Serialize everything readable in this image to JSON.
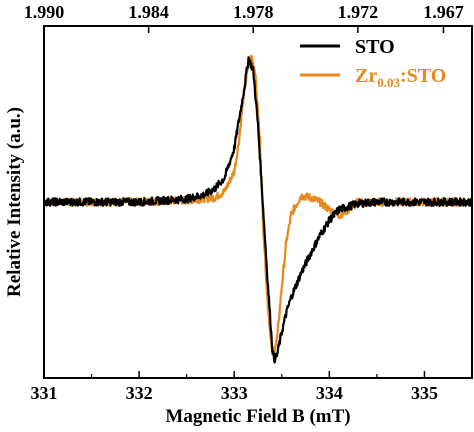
{
  "chart_data": {
    "type": "line",
    "title": "",
    "xlabel": "Magnetic Field B (mT)",
    "ylabel": "Relative Intensity (a.u.)",
    "xlim": [
      331,
      335.5
    ],
    "ylim": [
      -1.15,
      1.15
    ],
    "x_ticks": [
      "331",
      "332",
      "333",
      "334",
      "335"
    ],
    "top_axis_ticks": [
      "1.990",
      "1.984",
      "1.978",
      "1.972",
      "1.967"
    ],
    "top_axis_tick_positions_mT": [
      331.0,
      332.1,
      333.2,
      334.3,
      335.2
    ],
    "y_ticks_shown": false,
    "legend_position": "top-right",
    "series": [
      {
        "name": "STO",
        "legend_label": "STO",
        "color": "#000000",
        "x": [
          331.0,
          331.5,
          332.0,
          332.5,
          332.7,
          332.8,
          332.9,
          333.0,
          333.1,
          333.15,
          333.2,
          333.25,
          333.3,
          333.35,
          333.4,
          333.42,
          333.45,
          333.5,
          333.55,
          333.6,
          333.7,
          333.8,
          333.9,
          334.0,
          334.1,
          334.3,
          334.5,
          335.0,
          335.5
        ],
        "y": [
          0.0,
          0.0,
          0.0,
          0.02,
          0.05,
          0.09,
          0.16,
          0.35,
          0.72,
          0.94,
          0.86,
          0.5,
          0.0,
          -0.5,
          -0.95,
          -1.03,
          -1.0,
          -0.85,
          -0.72,
          -0.62,
          -0.47,
          -0.34,
          -0.22,
          -0.12,
          -0.05,
          -0.01,
          0.0,
          0.0,
          0.0
        ]
      },
      {
        "name": "Zr0.03:STO",
        "legend_label_main": "Zr",
        "legend_label_sub": "0.03",
        "legend_label_tail": ":STO",
        "color": "#E8891D",
        "x": [
          331.0,
          331.5,
          332.0,
          332.5,
          332.8,
          332.9,
          333.0,
          333.05,
          333.1,
          333.15,
          333.18,
          333.22,
          333.27,
          333.3,
          333.35,
          333.4,
          333.45,
          333.5,
          333.55,
          333.6,
          333.7,
          333.8,
          333.9,
          334.0,
          334.1,
          334.2,
          334.3,
          334.5,
          335.0,
          335.5
        ],
        "y": [
          0.0,
          0.0,
          0.0,
          0.01,
          0.03,
          0.07,
          0.2,
          0.4,
          0.7,
          0.9,
          0.96,
          0.85,
          0.4,
          -0.1,
          -0.65,
          -1.0,
          -0.9,
          -0.55,
          -0.25,
          -0.08,
          0.04,
          0.03,
          0.0,
          -0.05,
          -0.09,
          -0.05,
          0.0,
          0.0,
          0.0,
          0.0
        ]
      }
    ]
  }
}
